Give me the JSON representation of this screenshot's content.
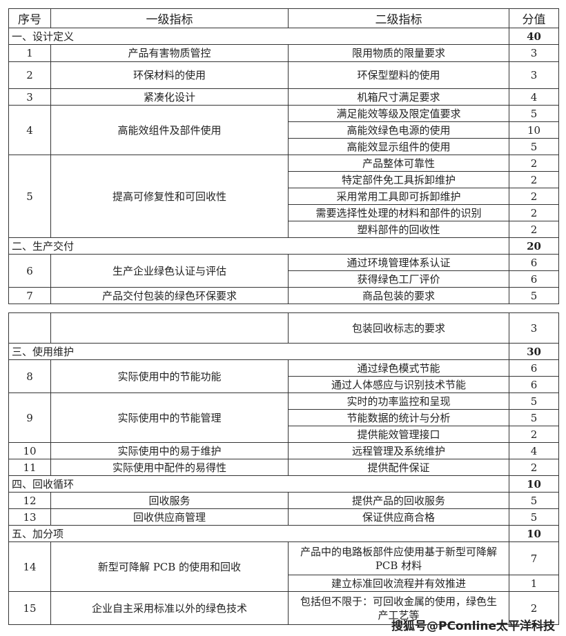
{
  "headers": {
    "no": "序号",
    "level1": "一级指标",
    "level2": "二级指标",
    "score": "分值"
  },
  "sections": [
    {
      "title": "一、设计定义",
      "score": "40"
    },
    {
      "title": "二、生产交付",
      "score": "20"
    },
    {
      "title": "三、使用维护",
      "score": "30"
    },
    {
      "title": "四、回收循环",
      "score": "10"
    },
    {
      "title": "五、加分项",
      "score": "10"
    }
  ],
  "rows": [
    {
      "no": "1",
      "l1": "产品有害物质管控",
      "items": [
        {
          "l2": "限用物质的限量要求",
          "s": "3"
        }
      ]
    },
    {
      "no": "2",
      "l1": "环保材料的使用",
      "items": [
        {
          "l2": "环保型塑料的使用",
          "s": "3"
        }
      ]
    },
    {
      "no": "3",
      "l1": "紧凑化设计",
      "items": [
        {
          "l2": "机箱尺寸满足要求",
          "s": "4"
        }
      ]
    },
    {
      "no": "4",
      "l1": "高能效组件及部件使用",
      "items": [
        {
          "l2": "满足能效等级及限定值要求",
          "s": "5"
        },
        {
          "l2": "高能效绿色电源的使用",
          "s": "10"
        },
        {
          "l2": "高能效显示组件的使用",
          "s": "5"
        }
      ]
    },
    {
      "no": "5",
      "l1": "提高可修复性和可回收性",
      "items": [
        {
          "l2": "产品整体可靠性",
          "s": "2"
        },
        {
          "l2": "特定部件免工具拆卸维护",
          "s": "2"
        },
        {
          "l2": "采用常用工具即可拆卸维护",
          "s": "2"
        },
        {
          "l2": "需要选择性处理的材料和部件的识别",
          "s": "2"
        },
        {
          "l2": "塑料部件的回收性",
          "s": "2"
        }
      ]
    },
    {
      "no": "6",
      "l1": "生产企业绿色认证与评估",
      "items": [
        {
          "l2": "通过环境管理体系认证",
          "s": "6"
        },
        {
          "l2": "获得绿色工厂评价",
          "s": "6"
        }
      ]
    },
    {
      "no": "7",
      "l1": "产品交付包装的绿色环保要求",
      "items": [
        {
          "l2": "商品包装的要求",
          "s": "5"
        },
        {
          "l2": "包装回收标志的要求",
          "s": "3"
        }
      ]
    },
    {
      "no": "8",
      "l1": "实际使用中的节能功能",
      "items": [
        {
          "l2": "通过绿色模式节能",
          "s": "6"
        },
        {
          "l2": "通过人体感应与识别技术节能",
          "s": "6"
        }
      ]
    },
    {
      "no": "9",
      "l1": "实际使用中的节能管理",
      "items": [
        {
          "l2": "实时的功率监控和呈现",
          "s": "5"
        },
        {
          "l2": "节能数据的统计与分析",
          "s": "5"
        },
        {
          "l2": "提供能效管理接口",
          "s": "2"
        }
      ]
    },
    {
      "no": "10",
      "l1": "实际使用中的易于维护",
      "items": [
        {
          "l2": "远程管理及系统维护",
          "s": "4"
        }
      ]
    },
    {
      "no": "11",
      "l1": "实际使用中配件的易得性",
      "items": [
        {
          "l2": "提供配件保证",
          "s": "2"
        }
      ]
    },
    {
      "no": "12",
      "l1": "回收服务",
      "items": [
        {
          "l2": "提供产品的回收服务",
          "s": "5"
        }
      ]
    },
    {
      "no": "13",
      "l1": "回收供应商管理",
      "items": [
        {
          "l2": "保证供应商合格",
          "s": "5"
        }
      ]
    },
    {
      "no": "14",
      "l1": "新型可降解 PCB 的使用和回收",
      "items": [
        {
          "l2": "产品中的电路板部件应使用基于新型可降解 PCB 材料",
          "s": "7"
        },
        {
          "l2": "建立标准回收流程并有效推进",
          "s": "1"
        }
      ]
    },
    {
      "no": "15",
      "l1": "企业自主采用标准以外的绿色技术",
      "items": [
        {
          "l2": "包括但不限于：可回收金属的使用，绿色生产工艺等",
          "s": "2"
        }
      ]
    }
  ],
  "watermark": "搜狐号@PConline太平洋科技"
}
